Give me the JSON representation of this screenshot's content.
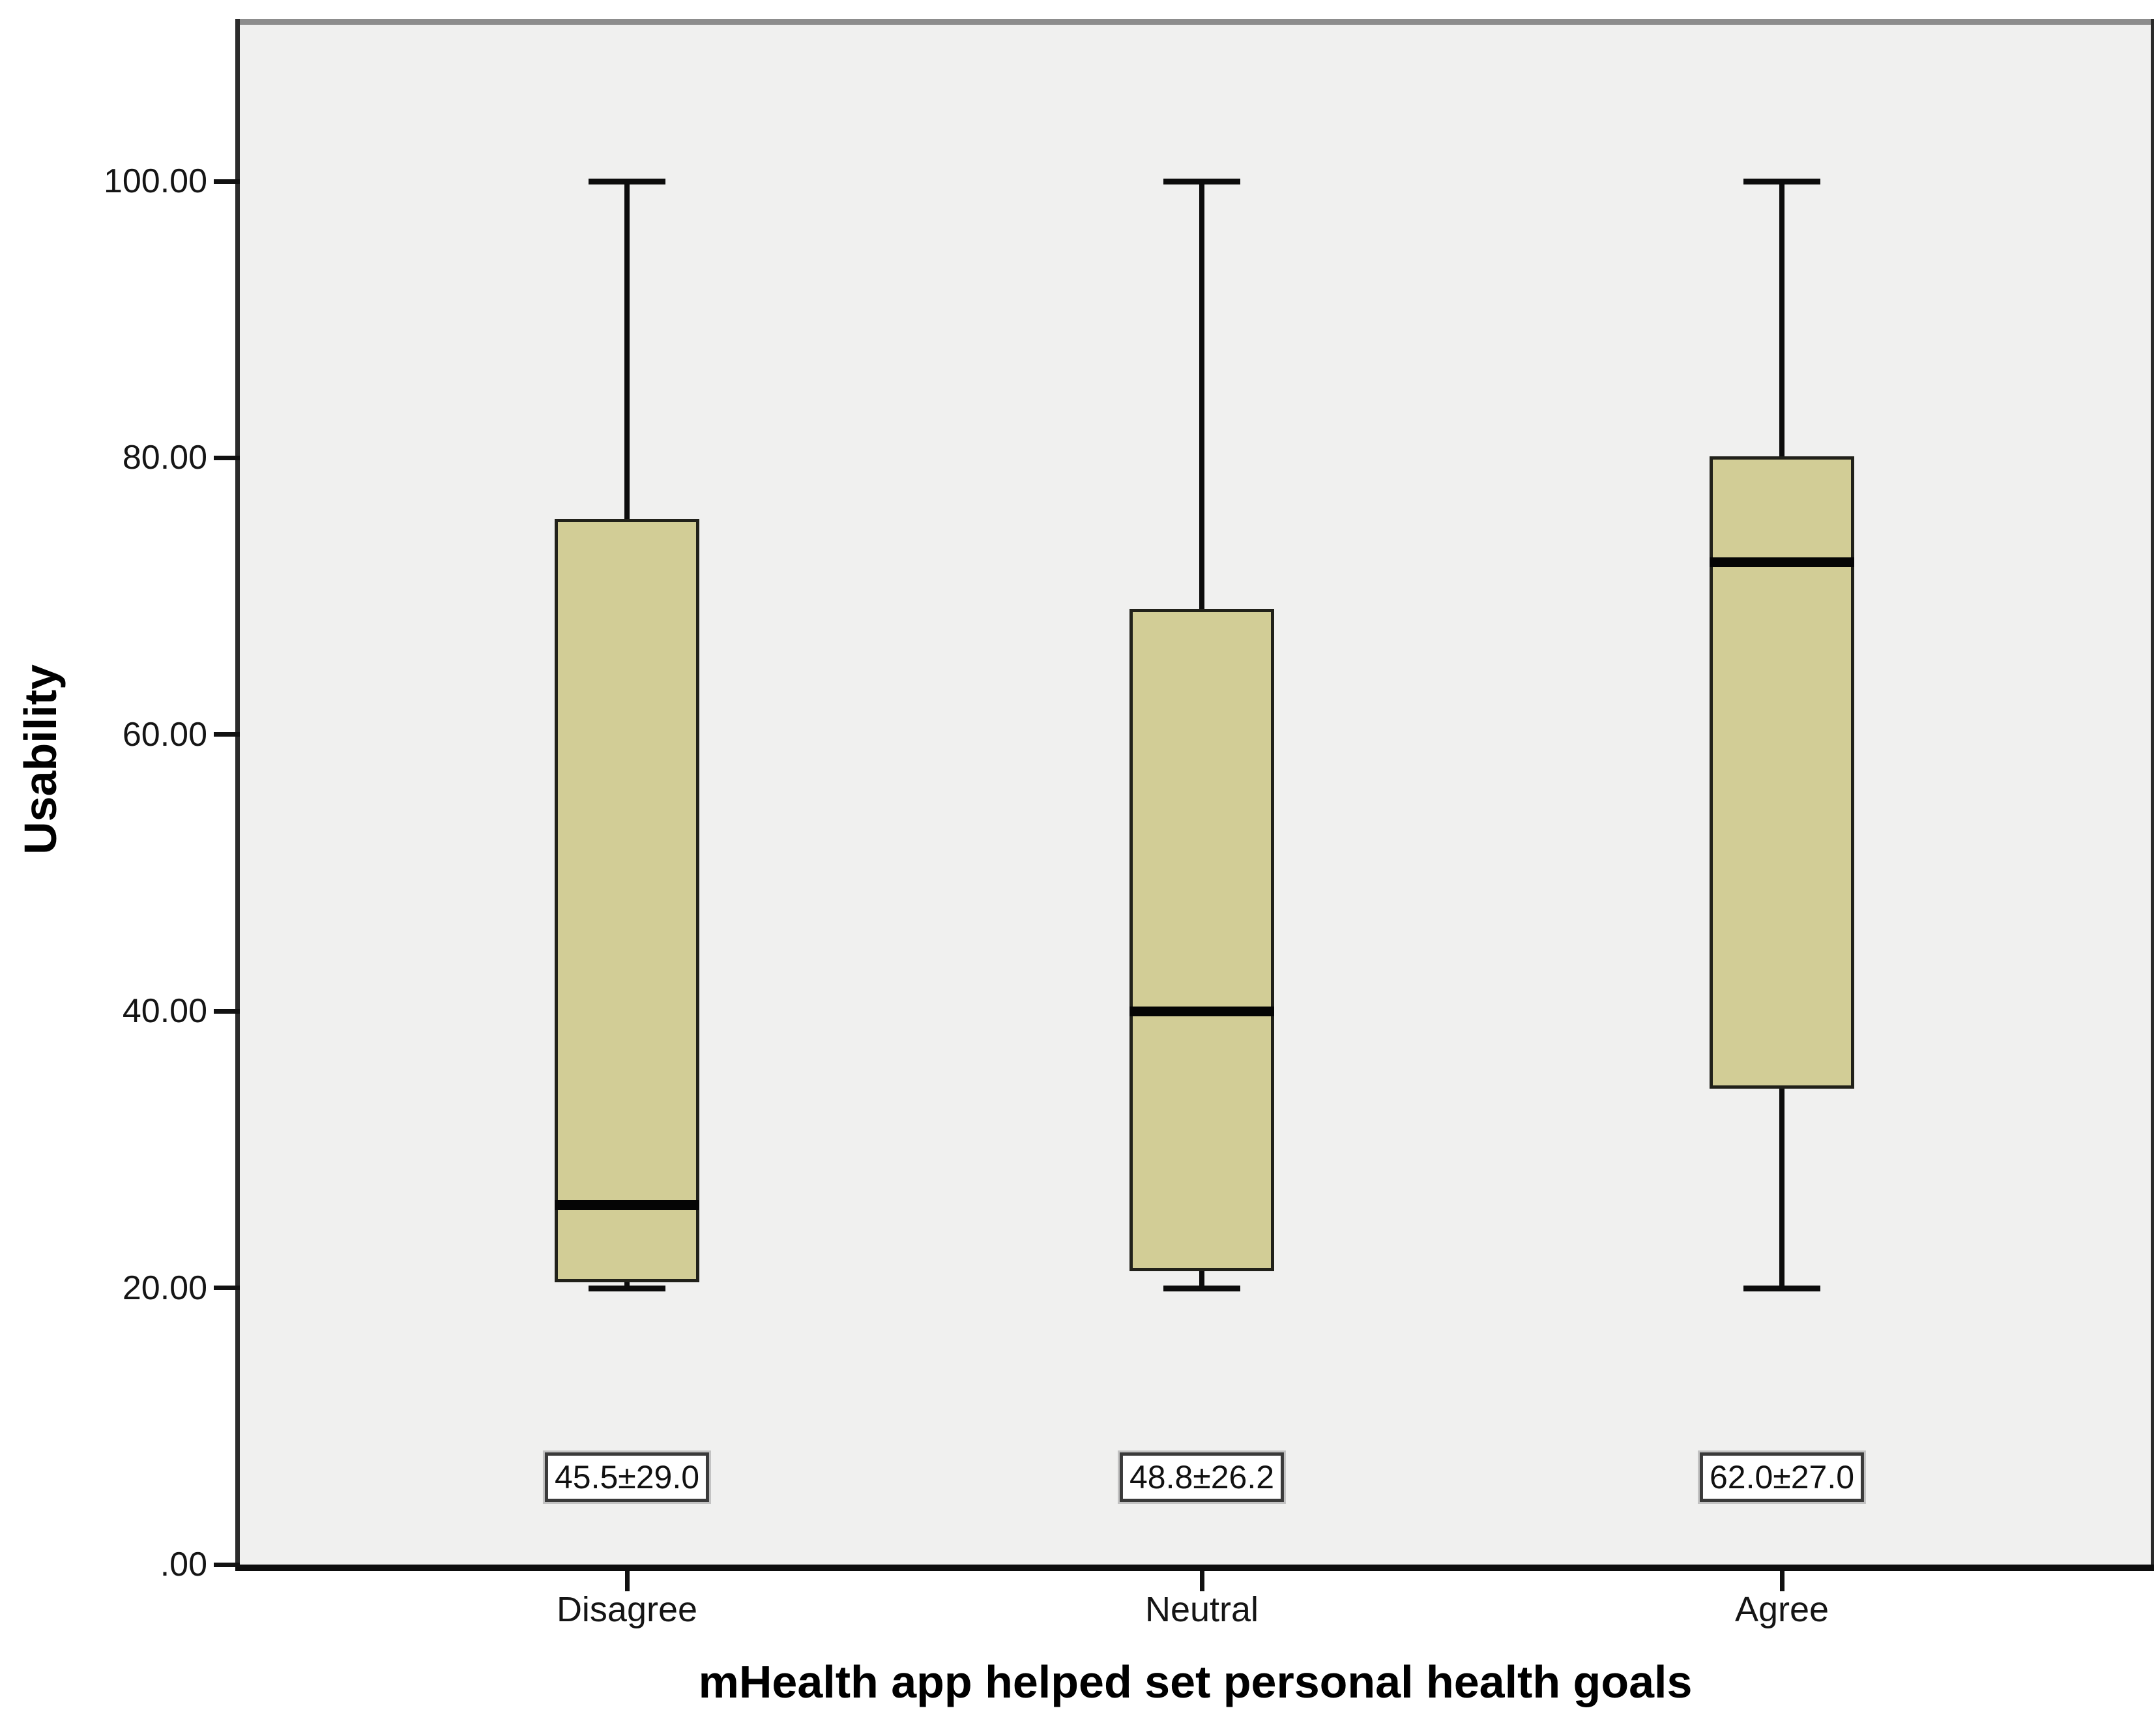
{
  "chart_data": {
    "type": "box",
    "title": "",
    "xlabel": "mHealth app helped set personal health goals",
    "ylabel": "Usability",
    "categories": [
      "Disagree",
      "Neutral",
      "Agree"
    ],
    "series": [
      {
        "category": "Disagree",
        "min": 20,
        "q1": 20.5,
        "median": 26,
        "q3": 75.5,
        "max": 100,
        "mean_sd_label": "45.5±29.0"
      },
      {
        "category": "Neutral",
        "min": 20,
        "q1": 21.3,
        "median": 40,
        "q3": 69,
        "max": 100,
        "mean_sd_label": "48.8±26.2"
      },
      {
        "category": "Agree",
        "min": 20,
        "q1": 34.5,
        "median": 72.5,
        "q3": 80,
        "max": 100,
        "mean_sd_label": "62.0±27.0"
      }
    ],
    "yticks": [
      {
        "label": ".00",
        "value": 0
      },
      {
        "label": "20.00",
        "value": 20
      },
      {
        "label": "40.00",
        "value": 40
      },
      {
        "label": "60.00",
        "value": 60
      },
      {
        "label": "80.00",
        "value": 80
      },
      {
        "label": "100.00",
        "value": 100
      }
    ],
    "ylim": [
      0,
      111
    ],
    "grid": false,
    "legend": false,
    "colors": {
      "box_fill": "#d2cd96",
      "box_border": "#21211a",
      "line": "#0c0c0c",
      "plot_bg": "#f0f0ef",
      "frame_top": "#8d8d8d",
      "frame_side": "#2b2b2b",
      "annotation_bg": "#ffffff",
      "annotation_border": "#3a3a3a"
    }
  }
}
